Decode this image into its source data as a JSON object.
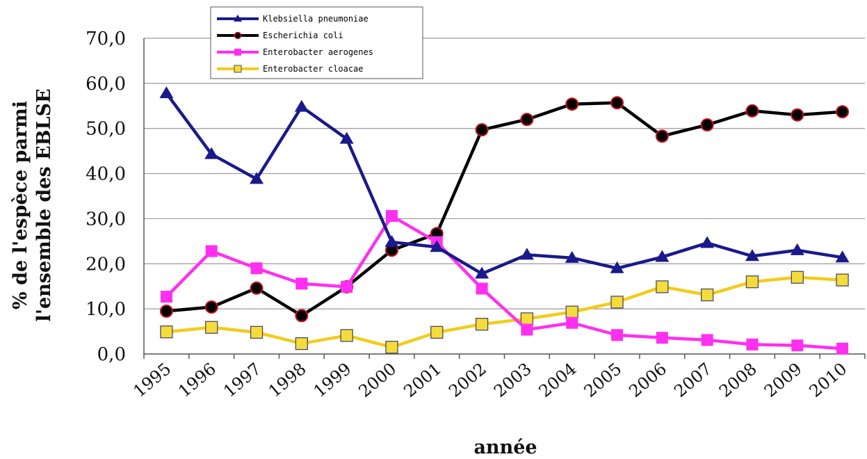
{
  "chart_data": {
    "type": "line",
    "title": "",
    "xlabel": "année",
    "ylabel_lines": [
      "% de l'espèce parmi",
      "l'ensemble des EBLSE"
    ],
    "ylim": [
      0,
      70
    ],
    "yticks": [
      "0,0",
      "10,0",
      "20,0",
      "30,0",
      "40,0",
      "50,0",
      "60,0",
      "70,0"
    ],
    "grid": true,
    "legend_position": "top-left",
    "categories": [
      "1995",
      "1996",
      "1997",
      "1998",
      "1999",
      "2000",
      "2001",
      "2002",
      "2003",
      "2004",
      "2005",
      "2006",
      "2007",
      "2008",
      "2009",
      "2010"
    ],
    "series": [
      {
        "name": "Klebsiella pneumoniae",
        "color": "#1a1a8c",
        "marker": "triangle",
        "values": [
          57.8,
          44.3,
          38.8,
          54.8,
          47.7,
          24.8,
          23.7,
          17.8,
          22.0,
          21.3,
          19.0,
          21.5,
          24.6,
          21.7,
          23.0,
          21.4
        ]
      },
      {
        "name": "Escherichia coli",
        "color": "#000000",
        "marker": "circle",
        "values": [
          9.5,
          10.4,
          14.6,
          8.5,
          14.9,
          23.0,
          26.7,
          49.7,
          52.0,
          55.4,
          55.7,
          48.3,
          50.8,
          53.9,
          53.0,
          53.7
        ]
      },
      {
        "name": "Enterobacter aerogenes",
        "color": "#ff2ff0",
        "marker": "square",
        "values": [
          12.7,
          22.8,
          19.0,
          15.6,
          14.9,
          30.6,
          24.8,
          14.5,
          5.4,
          6.9,
          4.2,
          3.6,
          3.1,
          2.1,
          1.9,
          1.2
        ]
      },
      {
        "name": "Enterobacter cloacae",
        "color": "#f2cc1a",
        "marker": "open-square",
        "values": [
          4.9,
          5.9,
          4.8,
          2.3,
          4.1,
          1.5,
          4.8,
          6.6,
          7.8,
          9.3,
          11.5,
          14.9,
          13.1,
          16.0,
          17.0,
          16.4
        ]
      }
    ]
  }
}
